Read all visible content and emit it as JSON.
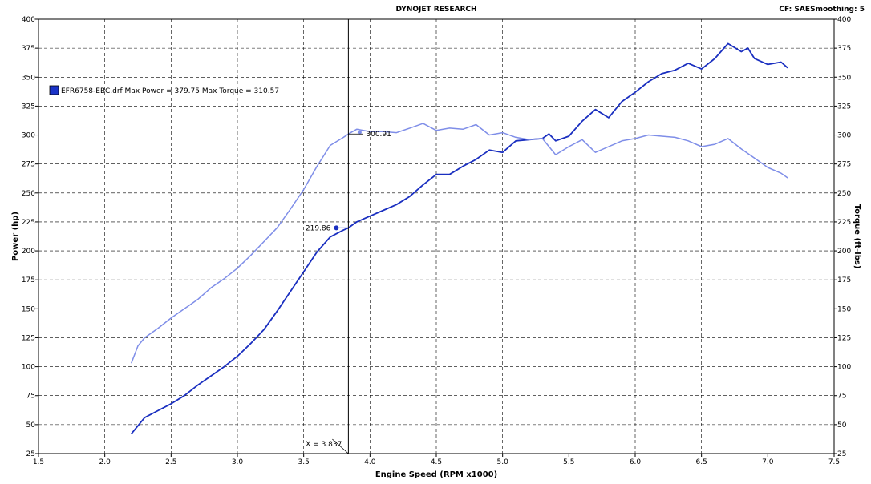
{
  "header": {
    "title": "DYNOJET RESEARCH",
    "cf_label": "CF: SAE",
    "smoothing_label": "Smoothing: 5"
  },
  "chart_data": {
    "type": "line",
    "xlabel": "Engine Speed (RPM x1000)",
    "ylabel_left": "Power (hp)",
    "ylabel_right": "Torque (ft-lbs)",
    "xlim": [
      1.5,
      7.5
    ],
    "ylim_left": [
      25,
      400
    ],
    "ylim_right": [
      25,
      400
    ],
    "x_ticks": [
      "1.5",
      "2.0",
      "2.5",
      "3.0",
      "3.5",
      "4.0",
      "4.5",
      "5.0",
      "5.5",
      "6.0",
      "6.5",
      "7.0",
      "7.5"
    ],
    "y_ticks": [
      "25",
      "50",
      "75",
      "100",
      "125",
      "150",
      "175",
      "200",
      "225",
      "250",
      "275",
      "300",
      "325",
      "350",
      "375",
      "400"
    ],
    "grid": true,
    "legend": {
      "placement": "top-left",
      "text": "EFR6758-EBC.drf Max Power = 379.75 Max Torque = 310.57",
      "swatch_color": "#1a33c8"
    },
    "cursor": {
      "x": 3.837,
      "label": "X = 3.837",
      "power_readout": "219.86",
      "power_value": 219.86,
      "torque_readout": "300.91",
      "torque_value": 300.91
    },
    "series": [
      {
        "name": "Power",
        "axis": "left",
        "color": "#1a2fc0",
        "x": [
          2.2,
          2.3,
          2.4,
          2.5,
          2.6,
          2.7,
          2.8,
          2.9,
          3.0,
          3.1,
          3.2,
          3.3,
          3.4,
          3.5,
          3.6,
          3.7,
          3.8,
          3.837,
          3.9,
          4.0,
          4.1,
          4.2,
          4.3,
          4.4,
          4.5,
          4.6,
          4.7,
          4.8,
          4.9,
          5.0,
          5.1,
          5.2,
          5.3,
          5.35,
          5.4,
          5.5,
          5.6,
          5.7,
          5.8,
          5.9,
          6.0,
          6.1,
          6.2,
          6.3,
          6.4,
          6.5,
          6.6,
          6.7,
          6.8,
          6.85,
          6.9,
          7.0,
          7.1,
          7.15
        ],
        "y": [
          42,
          56,
          62,
          68,
          75,
          84,
          92,
          100,
          109,
          120,
          132,
          148,
          165,
          182,
          199,
          212,
          218,
          219.86,
          225,
          230,
          235,
          240,
          247,
          257,
          266,
          266,
          273,
          279,
          287,
          285,
          295,
          296,
          297,
          301,
          295,
          299,
          312,
          322,
          315,
          329,
          337,
          346,
          353,
          356,
          362,
          357,
          366,
          379,
          372,
          375,
          366,
          361,
          363,
          358
        ]
      },
      {
        "name": "Torque",
        "axis": "right",
        "color": "#7f8ee8",
        "x": [
          2.2,
          2.25,
          2.3,
          2.4,
          2.5,
          2.6,
          2.7,
          2.8,
          2.9,
          3.0,
          3.1,
          3.2,
          3.3,
          3.4,
          3.5,
          3.6,
          3.7,
          3.8,
          3.837,
          3.9,
          4.0,
          4.1,
          4.2,
          4.3,
          4.4,
          4.5,
          4.6,
          4.7,
          4.8,
          4.9,
          5.0,
          5.1,
          5.2,
          5.3,
          5.4,
          5.5,
          5.6,
          5.7,
          5.8,
          5.9,
          6.0,
          6.1,
          6.2,
          6.3,
          6.4,
          6.5,
          6.6,
          6.7,
          6.8,
          6.9,
          7.0,
          7.1,
          7.15
        ],
        "y": [
          103,
          118,
          125,
          133,
          142,
          150,
          158,
          168,
          176,
          185,
          196,
          208,
          220,
          236,
          253,
          273,
          291,
          298,
          300.91,
          305,
          303,
          303,
          302,
          306,
          310,
          304,
          306,
          305,
          309,
          300,
          302,
          298,
          296,
          297,
          283,
          290,
          296,
          285,
          290,
          295,
          297,
          300,
          299,
          298,
          295,
          290,
          292,
          297,
          288,
          280,
          272,
          267,
          263
        ]
      }
    ]
  }
}
